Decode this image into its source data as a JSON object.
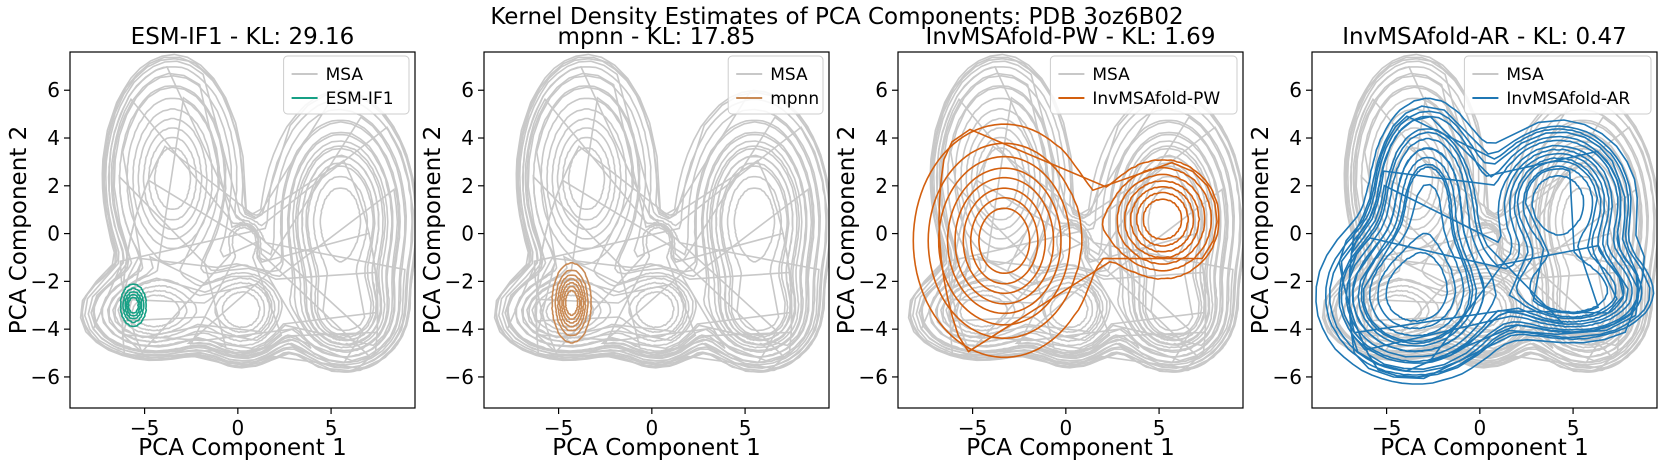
{
  "figure": {
    "suptitle": "Kernel Density Estimates of PCA Components: PDB 3oz6B02"
  },
  "colors": {
    "msa": "#c8c8c8",
    "esm_if1": "#16a085",
    "mpnn": "#c98a55",
    "invmsafold_pw": "#d35f0e",
    "invmsafold_ar": "#1f77b4"
  },
  "chart_data": [
    {
      "type": "kde_contour",
      "title": "ESM-IF1 - KL: 29.16",
      "xlabel": "PCA Component 1",
      "ylabel": "PCA Component 2",
      "xlim": [
        -9,
        9.5
      ],
      "ylim": [
        -7.3,
        7.6
      ],
      "xticks": [
        -5,
        0,
        5
      ],
      "xtick_labels": [
        "−5",
        "0",
        "5"
      ],
      "yticks": [
        -6,
        -4,
        -2,
        0,
        2,
        4,
        6
      ],
      "ytick_labels": [
        "−6",
        "−4",
        "−2",
        "0",
        "2",
        "4",
        "6"
      ],
      "legend": [
        "MSA",
        "ESM-IF1"
      ],
      "legend_position": "top-right",
      "series": [
        {
          "name": "ESM-IF1",
          "color_key": "esm_if1",
          "levels": 5,
          "clusters": [
            {
              "center": [
                -5.6,
                -3.0
              ],
              "radius": [
                0.35,
                0.45
              ],
              "weight": 1.0
            }
          ]
        }
      ]
    },
    {
      "type": "kde_contour",
      "title": "mpnn - KL: 17.85",
      "xlabel": "PCA Component 1",
      "ylabel": "PCA Component 2",
      "xlim": [
        -9,
        9.5
      ],
      "ylim": [
        -7.3,
        7.6
      ],
      "xticks": [
        -5,
        0,
        5
      ],
      "xtick_labels": [
        "−5",
        "0",
        "5"
      ],
      "yticks": [
        -6,
        -4,
        -2,
        0,
        2,
        4,
        6
      ],
      "ytick_labels": [
        "−6",
        "−4",
        "−2",
        "0",
        "2",
        "4",
        "6"
      ],
      "legend": [
        "MSA",
        "mpnn"
      ],
      "legend_position": "top-right",
      "series": [
        {
          "name": "mpnn",
          "color_key": "mpnn",
          "levels": 7,
          "clusters": [
            {
              "center": [
                -4.3,
                -2.9
              ],
              "radius": [
                0.5,
                0.8
              ],
              "weight": 1.0
            }
          ]
        }
      ]
    },
    {
      "type": "kde_contour",
      "title": "InvMSAfold-PW - KL: 1.69",
      "xlabel": "PCA Component 1",
      "ylabel": "PCA Component 2",
      "xlim": [
        -9,
        9.5
      ],
      "ylim": [
        -7.3,
        7.6
      ],
      "xticks": [
        -5,
        0,
        5
      ],
      "xtick_labels": [
        "−5",
        "0",
        "5"
      ],
      "yticks": [
        -6,
        -4,
        -2,
        0,
        2,
        4,
        6
      ],
      "ytick_labels": [
        "−6",
        "−4",
        "−2",
        "0",
        "2",
        "4",
        "6"
      ],
      "legend": [
        "MSA",
        "InvMSAfold-PW"
      ],
      "legend_position": "top-right",
      "series": [
        {
          "name": "InvMSAfold-PW",
          "color_key": "invmsafold_pw",
          "levels": 8,
          "clusters": [
            {
              "center": [
                -3.3,
                -0.3
              ],
              "radius": [
                2.3,
                2.3
              ],
              "weight": 1.0
            },
            {
              "center": [
                5.2,
                0.6
              ],
              "radius": [
                1.7,
                1.4
              ],
              "weight": 0.45
            }
          ]
        }
      ]
    },
    {
      "type": "kde_contour",
      "title": "InvMSAfold-AR - KL: 0.47",
      "xlabel": "PCA Component 1",
      "ylabel": "PCA Component 2",
      "xlim": [
        -9,
        9.5
      ],
      "ylim": [
        -7.3,
        7.6
      ],
      "xticks": [
        -5,
        0,
        5
      ],
      "xtick_labels": [
        "−5",
        "0",
        "5"
      ],
      "yticks": [
        -6,
        -4,
        -2,
        0,
        2,
        4,
        6
      ],
      "ytick_labels": [
        "−6",
        "−4",
        "−2",
        "0",
        "2",
        "4",
        "6"
      ],
      "legend": [
        "MSA",
        "InvMSAfold-AR"
      ],
      "legend_position": "top-right",
      "series": [
        {
          "name": "InvMSAfold-AR",
          "color_key": "invmsafold_ar",
          "levels": 7,
          "clusters": [
            {
              "center": [
                -3.5,
                -2.6
              ],
              "radius": [
                2.3,
                1.6
              ],
              "weight": 1.0
            },
            {
              "center": [
                -2.8,
                1.5
              ],
              "radius": [
                1.5,
                2.0
              ],
              "weight": 0.6
            },
            {
              "center": [
                4.2,
                1.3
              ],
              "radius": [
                2.2,
                1.8
              ],
              "weight": 0.45
            },
            {
              "center": [
                5.0,
                -2.5
              ],
              "radius": [
                2.5,
                1.1
              ],
              "weight": 0.4
            }
          ]
        }
      ]
    }
  ],
  "reference_density": {
    "name": "MSA",
    "color_key": "msa",
    "levels": 8,
    "clusters": [
      {
        "center": [
          -3.5,
          2.3
        ],
        "radius": [
          1.6,
          2.2
        ],
        "weight": 1.0
      },
      {
        "center": [
          5.5,
          0.5
        ],
        "radius": [
          1.8,
          2.4
        ],
        "weight": 0.85
      },
      {
        "center": [
          -4.5,
          -3.3
        ],
        "radius": [
          1.8,
          0.9
        ],
        "weight": 0.7
      },
      {
        "center": [
          0.3,
          -3.2
        ],
        "radius": [
          1.3,
          1.1
        ],
        "weight": 0.65
      },
      {
        "center": [
          5.8,
          -3.4
        ],
        "radius": [
          1.4,
          1.0
        ],
        "weight": 0.6
      },
      {
        "center": [
          0.4,
          -0.3
        ],
        "radius": [
          0.5,
          0.5
        ],
        "weight": 0.2
      }
    ]
  }
}
